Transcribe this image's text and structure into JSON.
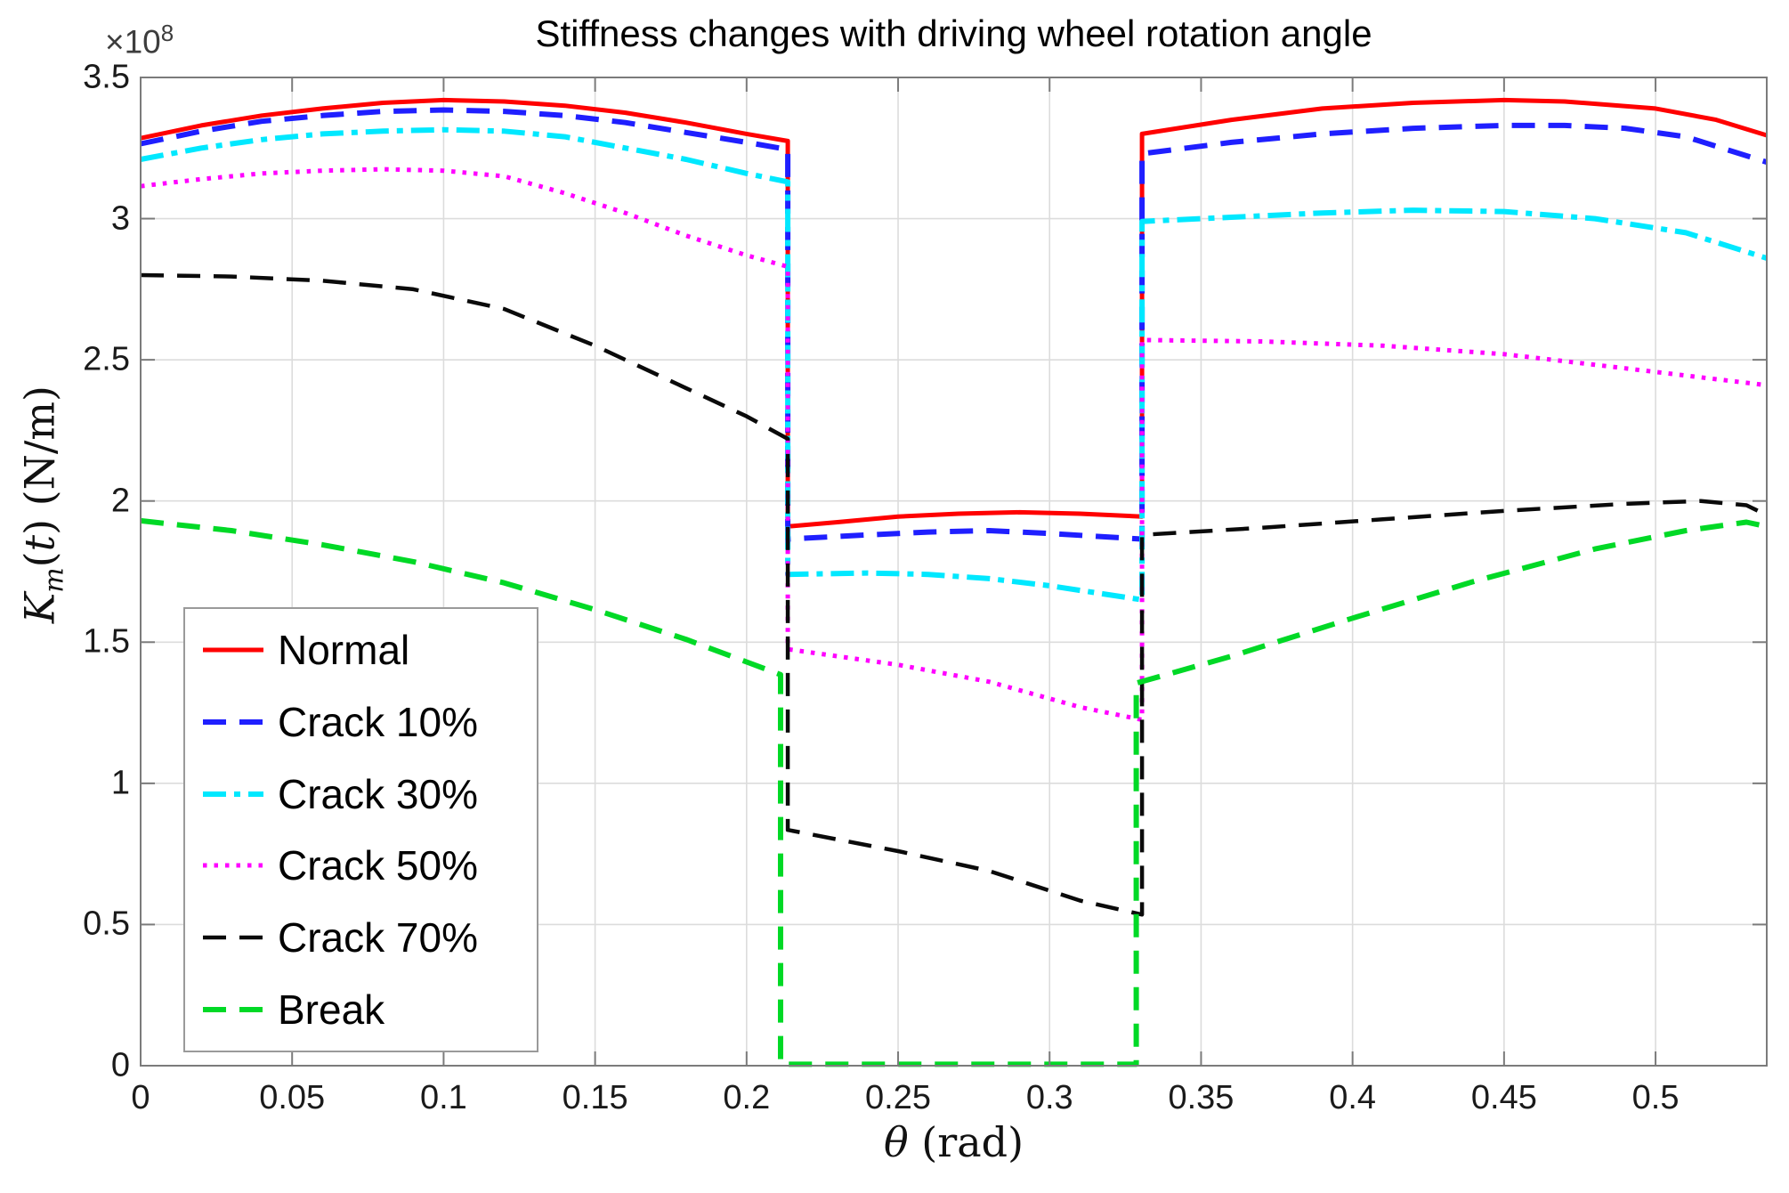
{
  "chart_data": {
    "type": "line",
    "title": "Stiffness changes with driving wheel rotation angle",
    "xlabel": "θ (rad)",
    "ylabel": "K_m(t) (N/m)",
    "xlabel_parts": {
      "theta": "θ",
      "tail": " (rad)"
    },
    "ylabel_parts": {
      "K": "K",
      "sub": "m",
      "mid": "(",
      "t": "t",
      "tail": ") (N/m)"
    },
    "offset_label": {
      "base": "×10",
      "exp": "8"
    },
    "y_unit_note": "values in N/m × 10^8",
    "grid": true,
    "legend_position": "lower-left",
    "x_min": 0,
    "x_max": 0.5367,
    "y_min": 0,
    "y_max": 3.5,
    "x_ticks": [
      {
        "v": 0,
        "label": "0"
      },
      {
        "v": 0.05,
        "label": "0.05"
      },
      {
        "v": 0.1,
        "label": "0.1"
      },
      {
        "v": 0.15,
        "label": "0.15"
      },
      {
        "v": 0.2,
        "label": "0.2"
      },
      {
        "v": 0.25,
        "label": "0.25"
      },
      {
        "v": 0.3,
        "label": "0.3"
      },
      {
        "v": 0.35,
        "label": "0.35"
      },
      {
        "v": 0.4,
        "label": "0.4"
      },
      {
        "v": 0.45,
        "label": "0.45"
      },
      {
        "v": 0.5,
        "label": "0.5"
      }
    ],
    "y_ticks": [
      {
        "v": 0,
        "label": "0"
      },
      {
        "v": 0.5,
        "label": "0.5"
      },
      {
        "v": 1,
        "label": "1"
      },
      {
        "v": 1.5,
        "label": "1.5"
      },
      {
        "v": 2,
        "label": "2"
      },
      {
        "v": 2.5,
        "label": "2.5"
      },
      {
        "v": 3,
        "label": "3"
      },
      {
        "v": 3.5,
        "label": "3.5"
      }
    ],
    "series": [
      {
        "name": "Normal",
        "color": "#ff0000",
        "style": "solid",
        "width": 5,
        "points": [
          [
            0,
            3.285
          ],
          [
            0.02,
            3.33
          ],
          [
            0.04,
            3.365
          ],
          [
            0.06,
            3.39
          ],
          [
            0.08,
            3.41
          ],
          [
            0.1,
            3.42
          ],
          [
            0.12,
            3.415
          ],
          [
            0.14,
            3.4
          ],
          [
            0.16,
            3.375
          ],
          [
            0.18,
            3.34
          ],
          [
            0.2,
            3.3
          ],
          [
            0.2136,
            3.275
          ],
          [
            0.2136,
            1.91
          ],
          [
            0.23,
            1.925
          ],
          [
            0.25,
            1.945
          ],
          [
            0.27,
            1.955
          ],
          [
            0.29,
            1.96
          ],
          [
            0.31,
            1.955
          ],
          [
            0.3305,
            1.945
          ],
          [
            0.3305,
            3.3
          ],
          [
            0.36,
            3.35
          ],
          [
            0.39,
            3.39
          ],
          [
            0.42,
            3.41
          ],
          [
            0.45,
            3.42
          ],
          [
            0.47,
            3.415
          ],
          [
            0.5,
            3.39
          ],
          [
            0.52,
            3.35
          ],
          [
            0.5367,
            3.295
          ]
        ]
      },
      {
        "name": "Crack 10%",
        "color": "#1f1fff",
        "style": "dashed",
        "width": 6,
        "points": [
          [
            0,
            3.265
          ],
          [
            0.02,
            3.31
          ],
          [
            0.04,
            3.345
          ],
          [
            0.06,
            3.365
          ],
          [
            0.08,
            3.38
          ],
          [
            0.1,
            3.385
          ],
          [
            0.12,
            3.38
          ],
          [
            0.14,
            3.365
          ],
          [
            0.16,
            3.34
          ],
          [
            0.18,
            3.305
          ],
          [
            0.2,
            3.27
          ],
          [
            0.2136,
            3.245
          ],
          [
            0.2136,
            1.865
          ],
          [
            0.24,
            1.88
          ],
          [
            0.26,
            1.89
          ],
          [
            0.28,
            1.895
          ],
          [
            0.3,
            1.885
          ],
          [
            0.3305,
            1.865
          ],
          [
            0.3305,
            3.23
          ],
          [
            0.36,
            3.27
          ],
          [
            0.39,
            3.3
          ],
          [
            0.42,
            3.32
          ],
          [
            0.45,
            3.33
          ],
          [
            0.47,
            3.33
          ],
          [
            0.49,
            3.32
          ],
          [
            0.51,
            3.29
          ],
          [
            0.5367,
            3.2
          ]
        ]
      },
      {
        "name": "Crack 30%",
        "color": "#00e8ff",
        "style": "dashdot",
        "width": 6,
        "points": [
          [
            0,
            3.21
          ],
          [
            0.02,
            3.25
          ],
          [
            0.04,
            3.28
          ],
          [
            0.06,
            3.3
          ],
          [
            0.08,
            3.31
          ],
          [
            0.1,
            3.315
          ],
          [
            0.12,
            3.31
          ],
          [
            0.14,
            3.29
          ],
          [
            0.16,
            3.25
          ],
          [
            0.18,
            3.21
          ],
          [
            0.2,
            3.16
          ],
          [
            0.2136,
            3.13
          ],
          [
            0.2136,
            1.74
          ],
          [
            0.24,
            1.745
          ],
          [
            0.26,
            1.74
          ],
          [
            0.28,
            1.725
          ],
          [
            0.3,
            1.7
          ],
          [
            0.3305,
            1.65
          ],
          [
            0.3305,
            2.99
          ],
          [
            0.36,
            3.005
          ],
          [
            0.39,
            3.02
          ],
          [
            0.42,
            3.03
          ],
          [
            0.45,
            3.025
          ],
          [
            0.48,
            3.0
          ],
          [
            0.51,
            2.95
          ],
          [
            0.5367,
            2.86
          ]
        ]
      },
      {
        "name": "Crack 50%",
        "color": "#ff00ff",
        "style": "dotted",
        "width": 5,
        "points": [
          [
            0,
            3.115
          ],
          [
            0.02,
            3.14
          ],
          [
            0.04,
            3.16
          ],
          [
            0.06,
            3.17
          ],
          [
            0.08,
            3.175
          ],
          [
            0.1,
            3.17
          ],
          [
            0.12,
            3.15
          ],
          [
            0.14,
            3.09
          ],
          [
            0.16,
            3.02
          ],
          [
            0.18,
            2.94
          ],
          [
            0.2,
            2.87
          ],
          [
            0.2136,
            2.83
          ],
          [
            0.2136,
            1.475
          ],
          [
            0.25,
            1.42
          ],
          [
            0.28,
            1.36
          ],
          [
            0.31,
            1.27
          ],
          [
            0.3305,
            1.225
          ],
          [
            0.3305,
            2.57
          ],
          [
            0.37,
            2.565
          ],
          [
            0.41,
            2.55
          ],
          [
            0.45,
            2.52
          ],
          [
            0.49,
            2.47
          ],
          [
            0.5367,
            2.41
          ]
        ]
      },
      {
        "name": "Crack 70%",
        "color": "#0a0a0a",
        "style": "dashed",
        "width": 4.5,
        "points": [
          [
            0,
            2.8
          ],
          [
            0.03,
            2.795
          ],
          [
            0.06,
            2.78
          ],
          [
            0.09,
            2.75
          ],
          [
            0.12,
            2.68
          ],
          [
            0.15,
            2.55
          ],
          [
            0.18,
            2.4
          ],
          [
            0.2,
            2.3
          ],
          [
            0.2136,
            2.22
          ],
          [
            0.2136,
            0.835
          ],
          [
            0.25,
            0.76
          ],
          [
            0.28,
            0.69
          ],
          [
            0.31,
            0.585
          ],
          [
            0.3305,
            0.535
          ],
          [
            0.3305,
            1.88
          ],
          [
            0.37,
            1.905
          ],
          [
            0.41,
            1.935
          ],
          [
            0.45,
            1.965
          ],
          [
            0.49,
            1.99
          ],
          [
            0.515,
            2.0
          ],
          [
            0.53,
            1.985
          ],
          [
            0.5367,
            1.95
          ]
        ]
      },
      {
        "name": "Break",
        "color": "#00d926",
        "style": "dashed",
        "width": 6,
        "points": [
          [
            0,
            1.93
          ],
          [
            0.03,
            1.895
          ],
          [
            0.06,
            1.845
          ],
          [
            0.09,
            1.785
          ],
          [
            0.12,
            1.71
          ],
          [
            0.15,
            1.615
          ],
          [
            0.18,
            1.51
          ],
          [
            0.2,
            1.43
          ],
          [
            0.2112,
            1.385
          ],
          [
            0.2112,
            0.005
          ],
          [
            0.3286,
            0.005
          ],
          [
            0.3286,
            1.355
          ],
          [
            0.36,
            1.45
          ],
          [
            0.4,
            1.585
          ],
          [
            0.44,
            1.715
          ],
          [
            0.48,
            1.83
          ],
          [
            0.51,
            1.895
          ],
          [
            0.53,
            1.925
          ],
          [
            0.5367,
            1.91
          ]
        ]
      }
    ]
  }
}
